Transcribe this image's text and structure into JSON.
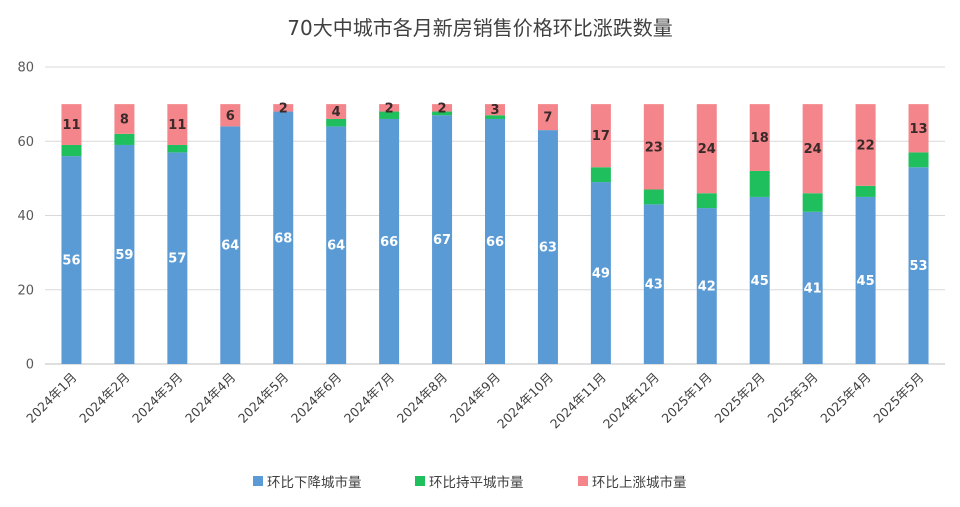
{
  "chart_data": {
    "type": "bar",
    "stacked": true,
    "title": "70大中城市各月新房销售价格环比涨跌数量",
    "categories": [
      "2024年1月",
      "2024年2月",
      "2024年3月",
      "2024年4月",
      "2024年5月",
      "2024年6月",
      "2024年7月",
      "2024年8月",
      "2024年9月",
      "2024年10月",
      "2024年11月",
      "2024年12月",
      "2025年1月",
      "2025年2月",
      "2025年3月",
      "2025年4月",
      "2025年5月"
    ],
    "series": [
      {
        "name": "环比下降城市量",
        "color": "#5b9bd5",
        "label_color": "#ffffff",
        "show_labels": true,
        "values": [
          56,
          59,
          57,
          64,
          68,
          64,
          66,
          67,
          66,
          63,
          49,
          43,
          42,
          45,
          41,
          45,
          53
        ]
      },
      {
        "name": "环比持平城市量",
        "color": "#1fbf5e",
        "label_color": "#333333",
        "show_labels": false,
        "values": [
          3,
          3,
          2,
          0,
          0,
          2,
          2,
          1,
          1,
          0,
          4,
          4,
          4,
          7,
          5,
          3,
          4
        ]
      },
      {
        "name": "环比上涨城市量",
        "color": "#f4868b",
        "label_color": "#3a2a2a",
        "show_labels": true,
        "values": [
          11,
          8,
          11,
          6,
          2,
          4,
          2,
          2,
          3,
          7,
          17,
          23,
          24,
          18,
          24,
          22,
          13
        ]
      }
    ],
    "ylim": [
      0,
      80
    ],
    "yticks": [
      0,
      20,
      40,
      60,
      80
    ],
    "grid": true,
    "legend": "bottom"
  }
}
